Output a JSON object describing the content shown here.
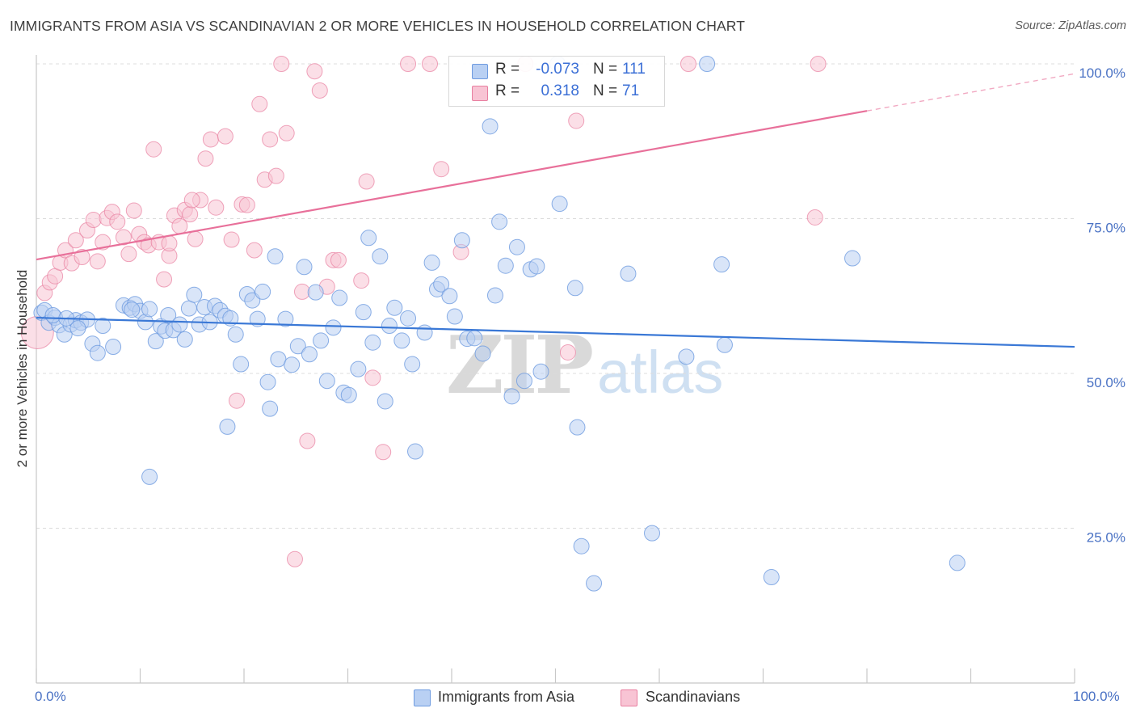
{
  "header": {
    "title": "IMMIGRANTS FROM ASIA VS SCANDINAVIAN 2 OR MORE VEHICLES IN HOUSEHOLD CORRELATION CHART",
    "source": "Source: ZipAtlas.com"
  },
  "watermark": {
    "zip": "ZIP",
    "atlas": "atlas"
  },
  "legend": {
    "rows": [
      {
        "series": "Immigrants from Asia",
        "r_label": "R =",
        "r_value": "-0.073",
        "n_label": "N =",
        "n_value": "111",
        "color": "#6e9be0",
        "fill": "#b9d0f3"
      },
      {
        "series": "Scandinavians",
        "r_label": "R =",
        "r_value": "0.318",
        "n_label": "N =",
        "n_value": "71",
        "color": "#e87fa0",
        "fill": "#f8c4d4"
      }
    ]
  },
  "bottom_legend": {
    "items": [
      {
        "label": "Immigrants from Asia",
        "fill": "#b9d0f3",
        "stroke": "#6e9be0"
      },
      {
        "label": "Scandinavians",
        "fill": "#f8c4d4",
        "stroke": "#e87fa0"
      }
    ]
  },
  "chart_data": {
    "type": "scatter",
    "title": "IMMIGRANTS FROM ASIA VS SCANDINAVIAN 2 OR MORE VEHICLES IN HOUSEHOLD CORRELATION CHART",
    "xlabel": "",
    "ylabel": "2 or more Vehicles in Household",
    "xlim": [
      0,
      100
    ],
    "ylim": [
      0,
      100
    ],
    "x_tick_labels": [
      "0.0%",
      "100.0%"
    ],
    "y_ticks": [
      25,
      50,
      75,
      100
    ],
    "y_tick_labels": [
      "25.0%",
      "50.0%",
      "75.0%",
      "100.0%"
    ],
    "grid": true,
    "legend_position": "top-center",
    "colors": {
      "blue": "#6e9be0",
      "blue_fill": "#b9d0f3",
      "blue_line": "#3a78d6",
      "pink": "#e87fa0",
      "pink_fill": "#f8c4d4",
      "pink_line": "#e8709a"
    },
    "series": [
      {
        "name": "Immigrants from Asia",
        "trend": {
          "x": [
            0,
            100
          ],
          "y": [
            59.0,
            54.3
          ],
          "style": "solid"
        },
        "points": [
          [
            0.5,
            59.8
          ],
          [
            0.8,
            60.2
          ],
          [
            1.2,
            58.2
          ],
          [
            1.8,
            59.0
          ],
          [
            2.2,
            57.8
          ],
          [
            2.7,
            56.3
          ],
          [
            3.3,
            57.9
          ],
          [
            3.8,
            58.6
          ],
          [
            4.3,
            58.2
          ],
          [
            4.9,
            58.7
          ],
          [
            5.4,
            54.8
          ],
          [
            5.9,
            53.3
          ],
          [
            6.4,
            57.7
          ],
          [
            7.4,
            54.3
          ],
          [
            8.4,
            61.0
          ],
          [
            9.0,
            60.6
          ],
          [
            9.5,
            61.2
          ],
          [
            10.0,
            60.1
          ],
          [
            10.5,
            58.3
          ],
          [
            10.9,
            60.4
          ],
          [
            11.5,
            55.2
          ],
          [
            12.0,
            57.6
          ],
          [
            12.4,
            56.9
          ],
          [
            12.7,
            59.4
          ],
          [
            13.2,
            57.0
          ],
          [
            13.8,
            57.9
          ],
          [
            14.3,
            55.5
          ],
          [
            14.7,
            60.5
          ],
          [
            15.2,
            62.7
          ],
          [
            15.7,
            57.9
          ],
          [
            16.2,
            60.7
          ],
          [
            16.7,
            58.3
          ],
          [
            17.2,
            60.9
          ],
          [
            17.7,
            60.2
          ],
          [
            18.2,
            59.3
          ],
          [
            18.7,
            58.9
          ],
          [
            19.2,
            56.3
          ],
          [
            19.7,
            51.5
          ],
          [
            20.3,
            62.8
          ],
          [
            20.8,
            61.8
          ],
          [
            21.3,
            58.8
          ],
          [
            21.8,
            63.2
          ],
          [
            22.3,
            48.6
          ],
          [
            23.0,
            68.9
          ],
          [
            23.3,
            52.3
          ],
          [
            24.0,
            58.8
          ],
          [
            24.6,
            51.4
          ],
          [
            25.2,
            54.4
          ],
          [
            25.8,
            67.2
          ],
          [
            26.3,
            53.1
          ],
          [
            26.9,
            63.1
          ],
          [
            27.4,
            55.3
          ],
          [
            28.0,
            48.8
          ],
          [
            28.6,
            57.4
          ],
          [
            29.2,
            62.2
          ],
          [
            29.6,
            46.9
          ],
          [
            30.1,
            46.5
          ],
          [
            31.0,
            50.7
          ],
          [
            31.5,
            59.9
          ],
          [
            32.0,
            71.9
          ],
          [
            32.4,
            55.0
          ],
          [
            33.1,
            68.9
          ],
          [
            33.6,
            45.5
          ],
          [
            34.0,
            57.7
          ],
          [
            34.5,
            60.6
          ],
          [
            35.2,
            55.3
          ],
          [
            35.8,
            58.9
          ],
          [
            36.2,
            51.5
          ],
          [
            36.5,
            37.4
          ],
          [
            37.4,
            56.6
          ],
          [
            38.1,
            67.9
          ],
          [
            38.6,
            63.6
          ],
          [
            39.0,
            64.4
          ],
          [
            39.8,
            62.5
          ],
          [
            40.3,
            59.2
          ],
          [
            41.0,
            71.5
          ],
          [
            41.5,
            55.6
          ],
          [
            42.2,
            55.7
          ],
          [
            43.0,
            53.2
          ],
          [
            43.7,
            89.9
          ],
          [
            44.2,
            62.6
          ],
          [
            44.6,
            74.5
          ],
          [
            45.2,
            67.4
          ],
          [
            45.8,
            46.3
          ],
          [
            46.3,
            70.4
          ],
          [
            47.0,
            48.8
          ],
          [
            47.6,
            66.8
          ],
          [
            48.2,
            67.3
          ],
          [
            48.6,
            50.3
          ],
          [
            50.4,
            77.4
          ],
          [
            51.9,
            63.8
          ],
          [
            52.1,
            41.3
          ],
          [
            52.5,
            22.1
          ],
          [
            53.7,
            16.1
          ],
          [
            57.0,
            66.1
          ],
          [
            59.3,
            24.2
          ],
          [
            62.6,
            52.7
          ],
          [
            64.6,
            100.0
          ],
          [
            66.0,
            67.6
          ],
          [
            66.3,
            54.6
          ],
          [
            70.8,
            17.1
          ],
          [
            78.6,
            68.6
          ],
          [
            88.7,
            19.4
          ],
          [
            10.9,
            33.3
          ],
          [
            18.4,
            41.4
          ],
          [
            22.5,
            44.3
          ],
          [
            9.2,
            60.3
          ],
          [
            1.6,
            59.4
          ],
          [
            4.0,
            57.3
          ],
          [
            2.9,
            58.9
          ],
          [
            50.2,
            100.0
          ]
        ]
      },
      {
        "name": "Scandinavians",
        "trend": {
          "x": [
            0,
            80
          ],
          "y": [
            68.4,
            92.4
          ],
          "x_dashed_end": 100,
          "y_dashed_end": 98.4
        },
        "points": [
          [
            0.1,
            56.6
          ],
          [
            0.8,
            63.0
          ],
          [
            1.3,
            64.7
          ],
          [
            1.8,
            65.7
          ],
          [
            2.3,
            67.9
          ],
          [
            2.8,
            69.9
          ],
          [
            3.4,
            67.8
          ],
          [
            3.8,
            71.5
          ],
          [
            4.4,
            68.8
          ],
          [
            4.9,
            73.1
          ],
          [
            5.5,
            74.8
          ],
          [
            5.9,
            68.1
          ],
          [
            6.4,
            71.2
          ],
          [
            6.8,
            75.1
          ],
          [
            7.3,
            76.1
          ],
          [
            7.8,
            74.5
          ],
          [
            8.4,
            72.0
          ],
          [
            8.9,
            69.3
          ],
          [
            9.4,
            76.3
          ],
          [
            9.9,
            72.5
          ],
          [
            10.4,
            71.2
          ],
          [
            10.8,
            70.7
          ],
          [
            11.3,
            86.2
          ],
          [
            11.8,
            71.2
          ],
          [
            12.3,
            65.2
          ],
          [
            12.8,
            69.0
          ],
          [
            13.3,
            75.5
          ],
          [
            13.8,
            73.8
          ],
          [
            14.3,
            76.4
          ],
          [
            14.8,
            75.7
          ],
          [
            15.3,
            71.7
          ],
          [
            15.8,
            78.0
          ],
          [
            16.3,
            84.7
          ],
          [
            16.8,
            87.8
          ],
          [
            17.3,
            76.8
          ],
          [
            18.2,
            88.3
          ],
          [
            18.8,
            71.6
          ],
          [
            19.3,
            45.6
          ],
          [
            19.8,
            77.3
          ],
          [
            20.3,
            77.2
          ],
          [
            21.0,
            69.9
          ],
          [
            21.5,
            93.5
          ],
          [
            22.0,
            81.3
          ],
          [
            22.5,
            87.8
          ],
          [
            23.1,
            81.9
          ],
          [
            23.6,
            100.0
          ],
          [
            24.1,
            88.8
          ],
          [
            24.9,
            20.0
          ],
          [
            25.6,
            63.2
          ],
          [
            26.1,
            39.1
          ],
          [
            26.8,
            98.8
          ],
          [
            27.3,
            95.7
          ],
          [
            28.0,
            64.0
          ],
          [
            28.6,
            68.3
          ],
          [
            29.1,
            68.3
          ],
          [
            31.3,
            65.0
          ],
          [
            31.8,
            81.0
          ],
          [
            32.4,
            49.3
          ],
          [
            33.4,
            37.3
          ],
          [
            35.8,
            100.0
          ],
          [
            37.9,
            100.0
          ],
          [
            39.0,
            83.0
          ],
          [
            40.9,
            69.6
          ],
          [
            47.1,
            100.0
          ],
          [
            51.2,
            53.4
          ],
          [
            52.0,
            90.8
          ],
          [
            62.8,
            100.0
          ],
          [
            75.3,
            100.0
          ],
          [
            75.0,
            75.2
          ],
          [
            15.0,
            78.0
          ],
          [
            12.8,
            71.0
          ]
        ]
      }
    ]
  }
}
